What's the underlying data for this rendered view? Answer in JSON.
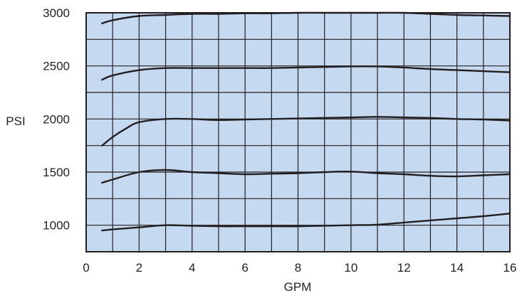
{
  "chart_data": {
    "type": "line",
    "xlabel": "GPM",
    "ylabel": "PSI",
    "xlim": [
      0,
      16
    ],
    "ylim": [
      750,
      3000
    ],
    "grid": true,
    "x_ticks": [
      0,
      2,
      4,
      6,
      8,
      10,
      12,
      14,
      16
    ],
    "y_ticks": [
      1000,
      1500,
      2000,
      2500,
      3000
    ],
    "x_tick_labels": [
      "0",
      "2",
      "4",
      "6",
      "8",
      "10",
      "12",
      "14",
      "16"
    ],
    "y_tick_labels": [
      "1000",
      "1500",
      "2000",
      "2500",
      "3000"
    ],
    "plot_background": "#c5d9f1",
    "line_color": "#231f20",
    "series": [
      {
        "x": [
          0.6,
          1,
          2,
          3,
          4,
          5,
          6,
          7,
          8,
          9,
          10,
          11,
          12,
          13,
          14,
          15,
          16
        ],
        "values": [
          2900,
          2930,
          2970,
          2980,
          2990,
          2990,
          2995,
          2995,
          3000,
          3000,
          3000,
          3000,
          3000,
          2990,
          2980,
          2975,
          2970
        ]
      },
      {
        "x": [
          0.6,
          1,
          2,
          3,
          4,
          5,
          6,
          7,
          8,
          9,
          10,
          11,
          12,
          13,
          14,
          15,
          16
        ],
        "values": [
          2370,
          2410,
          2460,
          2480,
          2480,
          2480,
          2480,
          2480,
          2485,
          2490,
          2495,
          2495,
          2485,
          2470,
          2460,
          2450,
          2440
        ]
      },
      {
        "x": [
          0.6,
          1,
          1.5,
          2,
          3,
          4,
          5,
          6,
          7,
          8,
          9,
          10,
          11,
          12,
          13,
          14,
          15,
          16
        ],
        "values": [
          1750,
          1830,
          1910,
          1970,
          2000,
          2000,
          1990,
          1995,
          2000,
          2005,
          2010,
          2015,
          2020,
          2015,
          2010,
          2000,
          1995,
          1985
        ]
      },
      {
        "x": [
          0.6,
          1,
          2,
          3,
          4,
          5,
          6,
          7,
          8,
          9,
          10,
          11,
          12,
          13,
          14,
          15,
          16
        ],
        "values": [
          1400,
          1430,
          1500,
          1520,
          1500,
          1490,
          1480,
          1485,
          1490,
          1500,
          1505,
          1490,
          1480,
          1465,
          1460,
          1470,
          1480
        ]
      },
      {
        "x": [
          0.6,
          1,
          2,
          3,
          4,
          5,
          6,
          7,
          8,
          9,
          10,
          11,
          12,
          13,
          14,
          15,
          16
        ],
        "values": [
          950,
          960,
          980,
          1000,
          995,
          990,
          990,
          990,
          990,
          995,
          1000,
          1005,
          1025,
          1045,
          1065,
          1085,
          1110
        ]
      }
    ]
  }
}
